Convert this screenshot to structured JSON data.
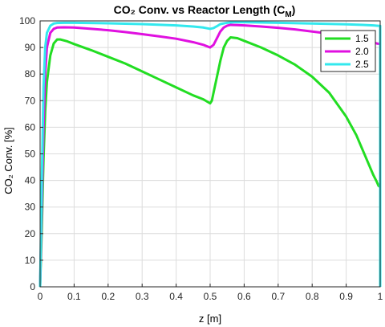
{
  "chart_data": {
    "type": "line",
    "title": "CO₂ Conv. vs Reactor Length (C",
    "title_subscript": "M",
    "title_close": ")",
    "xlabel": "z [m]",
    "ylabel": "CO₂ Conv. [%]",
    "xlim": [
      0,
      1
    ],
    "ylim": [
      0,
      100
    ],
    "xticks": [
      0,
      0.1,
      0.2,
      0.3,
      0.4,
      0.5,
      0.6,
      0.7,
      0.8,
      0.9,
      1
    ],
    "xtick_labels": [
      "0",
      "0.1",
      "0.2",
      "0.3",
      "0.4",
      "0.5",
      "0.6",
      "0.7",
      "0.8",
      "0.9",
      "1"
    ],
    "yticks": [
      0,
      10,
      20,
      30,
      40,
      50,
      60,
      70,
      80,
      90,
      100
    ],
    "ytick_labels": [
      "0",
      "10",
      "20",
      "30",
      "40",
      "50",
      "60",
      "70",
      "80",
      "90",
      "100"
    ],
    "grid": true,
    "legend_position": "top-right",
    "series": [
      {
        "name": "1.5",
        "color": "#22dd22",
        "x": [
          0,
          0.005,
          0.01,
          0.015,
          0.02,
          0.03,
          0.04,
          0.05,
          0.06,
          0.08,
          0.1,
          0.15,
          0.2,
          0.25,
          0.3,
          0.35,
          0.4,
          0.45,
          0.48,
          0.5,
          0.505,
          0.51,
          0.52,
          0.53,
          0.54,
          0.55,
          0.56,
          0.58,
          0.6,
          0.65,
          0.7,
          0.75,
          0.8,
          0.85,
          0.9,
          0.93,
          0.95,
          0.97,
          0.98,
          0.99,
          0.995,
          1,
          1
        ],
        "y": [
          0,
          22,
          48,
          66,
          77,
          87,
          91.5,
          93,
          93,
          92.3,
          91.3,
          89,
          86.5,
          84,
          81,
          78,
          75,
          72,
          70.5,
          69,
          70,
          73,
          79,
          85,
          90,
          92.5,
          93.8,
          93.5,
          92.5,
          90,
          87,
          83.5,
          79,
          73,
          64,
          57,
          51,
          45,
          42,
          39.5,
          38,
          37.5,
          0
        ]
      },
      {
        "name": "2.0",
        "color": "#e010e0",
        "x": [
          0,
          0.005,
          0.01,
          0.015,
          0.02,
          0.03,
          0.04,
          0.05,
          0.07,
          0.1,
          0.15,
          0.2,
          0.25,
          0.3,
          0.35,
          0.4,
          0.45,
          0.48,
          0.5,
          0.51,
          0.52,
          0.53,
          0.54,
          0.55,
          0.56,
          0.58,
          0.6,
          0.65,
          0.7,
          0.75,
          0.8,
          0.85,
          0.9,
          0.95,
          0.98,
          0.99,
          1,
          1
        ],
        "y": [
          0,
          30,
          60,
          80,
          90,
          95.5,
          97,
          97.5,
          97.6,
          97.5,
          97,
          96.5,
          95.8,
          95,
          94.2,
          93.3,
          92,
          91,
          90,
          91,
          93.5,
          96,
          97.5,
          98.2,
          98.5,
          98.4,
          98.3,
          97.9,
          97.4,
          96.8,
          96,
          95.2,
          94.2,
          93,
          92,
          91.5,
          91.3,
          0
        ]
      },
      {
        "name": "2.5",
        "color": "#33e8ee",
        "x": [
          0,
          0.005,
          0.01,
          0.015,
          0.02,
          0.03,
          0.04,
          0.05,
          0.07,
          0.1,
          0.2,
          0.3,
          0.4,
          0.45,
          0.48,
          0.5,
          0.51,
          0.52,
          0.53,
          0.55,
          0.57,
          0.6,
          0.7,
          0.8,
          0.9,
          0.95,
          0.98,
          0.99,
          1,
          1
        ],
        "y": [
          0,
          40,
          75,
          90,
          95.5,
          98.2,
          99,
          99.2,
          99.3,
          99.3,
          99.1,
          98.8,
          98.3,
          97.9,
          97.5,
          97,
          97.3,
          98,
          98.8,
          99.3,
          99.5,
          99.5,
          99.3,
          99,
          98.7,
          98.5,
          98.3,
          98.2,
          98.1,
          0
        ]
      }
    ]
  }
}
